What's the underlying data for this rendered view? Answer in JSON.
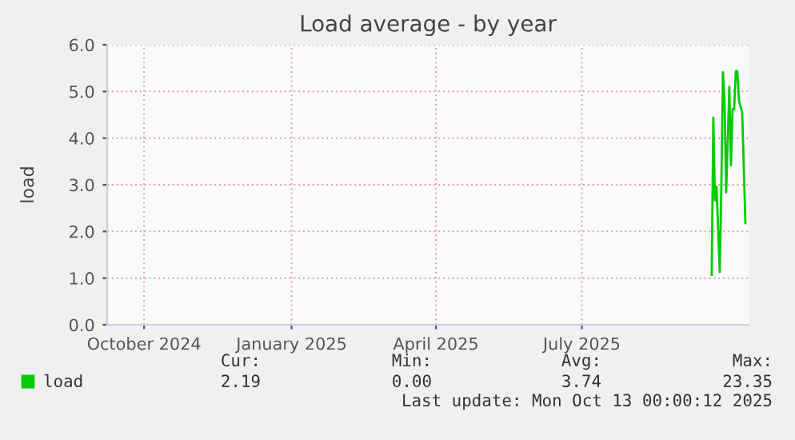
{
  "chart_data": {
    "type": "line",
    "title": "Load average - by year",
    "ylabel": "load",
    "x": [
      "2025-09-20",
      "2025-09-21",
      "2025-09-22",
      "2025-09-23",
      "2025-09-25",
      "2025-09-26",
      "2025-09-27",
      "2025-09-28",
      "2025-09-29",
      "2025-10-01",
      "2025-10-02",
      "2025-10-03",
      "2025-10-04",
      "2025-10-05",
      "2025-10-06",
      "2025-10-07",
      "2025-10-09",
      "2025-10-11"
    ],
    "series": [
      {
        "name": "load",
        "color": "#00cc00",
        "values": [
          1.07,
          4.44,
          2.67,
          2.96,
          1.13,
          2.96,
          5.41,
          4.8,
          2.84,
          5.1,
          3.42,
          4.62,
          4.62,
          5.43,
          5.43,
          4.8,
          4.55,
          2.18
        ]
      }
    ],
    "xlim": [
      "2024-09-08",
      "2025-10-13"
    ],
    "xticks": [
      {
        "value": "2024-10-01",
        "label": "October 2024"
      },
      {
        "value": "2025-01-01",
        "label": "January 2025"
      },
      {
        "value": "2025-04-01",
        "label": "April 2025"
      },
      {
        "value": "2025-07-01",
        "label": "July 2025"
      }
    ],
    "ylim": [
      0,
      6
    ],
    "yticks": [
      {
        "value": 0,
        "label": "0.0"
      },
      {
        "value": 1,
        "label": "1.0"
      },
      {
        "value": 2,
        "label": "2.0"
      },
      {
        "value": 3,
        "label": "3.0"
      },
      {
        "value": 4,
        "label": "4.0"
      },
      {
        "value": 5,
        "label": "5.0"
      },
      {
        "value": 6,
        "label": "6.0"
      }
    ],
    "grid": true,
    "legend": "bottom left",
    "marker": "none",
    "line_style": "solid",
    "annotations": [
      "Cur:",
      "Min:",
      "Avg:",
      "Max:",
      "2.19",
      "0.00",
      "3.74",
      "23.35",
      "Last update: Mon Oct 13 00:00:12 2025"
    ]
  }
}
